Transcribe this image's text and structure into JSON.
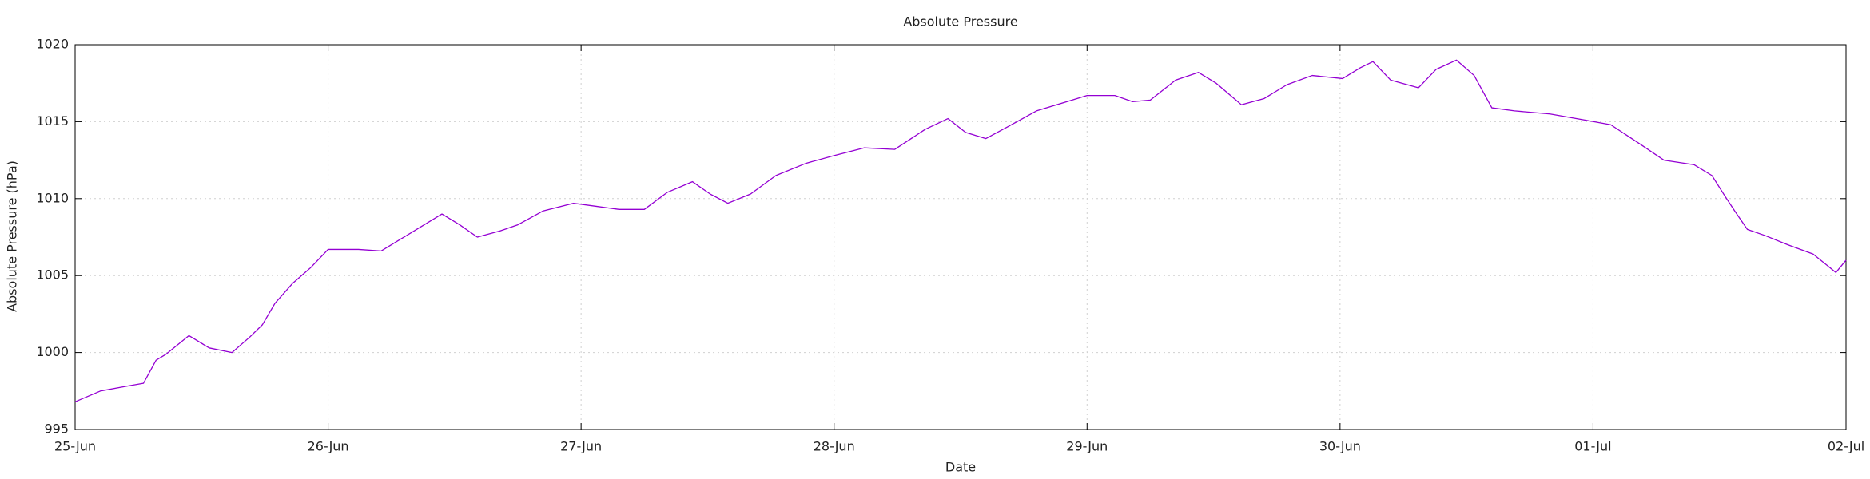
{
  "chart_data": {
    "type": "line",
    "title": "Absolute Pressure",
    "x_label": "Date",
    "y_label": "Absolute Pressure (hPa)",
    "x": [
      0,
      0.1,
      0.2,
      0.27,
      0.32,
      0.36,
      0.45,
      0.53,
      0.62,
      0.69,
      0.74,
      0.79,
      0.86,
      0.93,
      1.0,
      1.12,
      1.21,
      1.28,
      1.38,
      1.45,
      1.52,
      1.59,
      1.68,
      1.75,
      1.85,
      1.97,
      2.06,
      2.15,
      2.25,
      2.34,
      2.44,
      2.51,
      2.58,
      2.67,
      2.77,
      2.89,
      3.0,
      3.12,
      3.24,
      3.36,
      3.45,
      3.52,
      3.6,
      3.69,
      3.8,
      3.92,
      4.0,
      4.11,
      4.18,
      4.25,
      4.35,
      4.44,
      4.51,
      4.61,
      4.7,
      4.79,
      4.89,
      5.01,
      5.08,
      5.13,
      5.2,
      5.31,
      5.38,
      5.46,
      5.53,
      5.6,
      5.69,
      5.83,
      5.97,
      6.07,
      6.19,
      6.28,
      6.4,
      6.47,
      6.52,
      6.56,
      6.61,
      6.68,
      6.77,
      6.87,
      6.96,
      7.0
    ],
    "series": [
      {
        "name": "Absolute Pressure",
        "color": "#9400d3",
        "values": [
          996.8,
          997.5,
          997.8,
          998.0,
          999.5,
          999.9,
          1001.1,
          1000.3,
          1000.0,
          1001.0,
          1001.8,
          1003.2,
          1004.5,
          1005.5,
          1006.7,
          1006.7,
          1006.6,
          1007.3,
          1008.3,
          1009.0,
          1008.3,
          1007.5,
          1007.9,
          1008.3,
          1009.2,
          1009.7,
          1009.5,
          1009.3,
          1009.3,
          1010.4,
          1011.1,
          1010.3,
          1009.7,
          1010.3,
          1011.5,
          1012.3,
          1012.8,
          1013.3,
          1013.2,
          1014.5,
          1015.2,
          1014.3,
          1013.9,
          1014.7,
          1015.7,
          1016.3,
          1016.7,
          1016.7,
          1016.3,
          1016.4,
          1017.7,
          1018.2,
          1017.5,
          1016.1,
          1016.5,
          1017.4,
          1018.0,
          1017.8,
          1018.5,
          1018.9,
          1017.7,
          1017.2,
          1018.4,
          1019.0,
          1018.0,
          1015.9,
          1015.7,
          1015.5,
          1015.1,
          1014.8,
          1013.5,
          1012.5,
          1012.2,
          1011.5,
          1010.2,
          1009.2,
          1008.0,
          1007.6,
          1007.0,
          1006.4,
          1005.2,
          1006.0
        ]
      }
    ],
    "xlim": [
      0,
      7
    ],
    "xticks": [
      {
        "value": 0,
        "label": "25-Jun"
      },
      {
        "value": 1,
        "label": "26-Jun"
      },
      {
        "value": 2,
        "label": "27-Jun"
      },
      {
        "value": 3,
        "label": "28-Jun"
      },
      {
        "value": 4,
        "label": "29-Jun"
      },
      {
        "value": 5,
        "label": "30-Jun"
      },
      {
        "value": 6,
        "label": "01-Jul"
      },
      {
        "value": 7,
        "label": "02-Jul"
      }
    ],
    "ylim": [
      995,
      1020
    ],
    "yticks": [
      995,
      1000,
      1005,
      1010,
      1015,
      1020
    ],
    "grid": true
  }
}
